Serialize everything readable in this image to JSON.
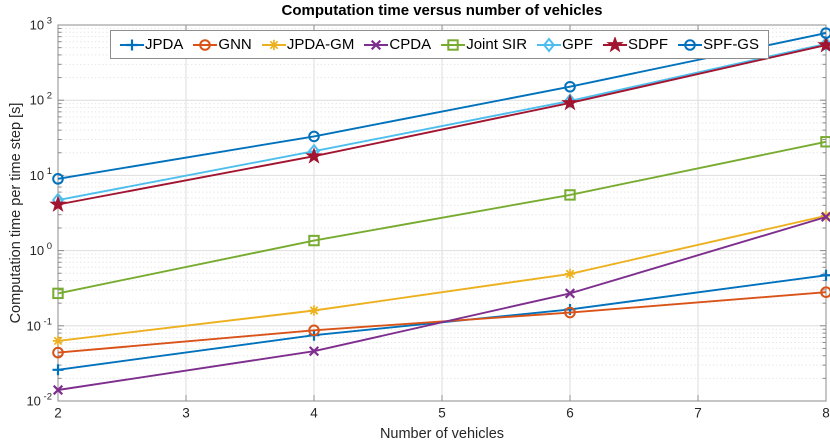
{
  "figure": {
    "window_title": "Computation time versus number of vehicles"
  },
  "chart_data": {
    "type": "line",
    "title": "Computation time versus number of vehicles",
    "xlabel": "Number of vehicles",
    "ylabel": "Computation time per time step [s]",
    "x": [
      2,
      4,
      6,
      8
    ],
    "xlim": [
      2,
      8
    ],
    "x_ticks": [
      2,
      3,
      4,
      5,
      6,
      7,
      8
    ],
    "y_scale": "log",
    "ylim_exponents": [
      -2,
      3
    ],
    "y_tick_exponents": [
      -2,
      -1,
      0,
      1,
      2,
      3
    ],
    "grid": true,
    "minor_grid": true,
    "legend_position": "top-inside-horizontal",
    "series": [
      {
        "name": "JPDA",
        "color": "#0072BD",
        "marker": "plus",
        "values": [
          0.026,
          0.075,
          0.165,
          0.47
        ]
      },
      {
        "name": "GNN",
        "color": "#D95319",
        "marker": "circle",
        "values": [
          0.044,
          0.087,
          0.15,
          0.28
        ]
      },
      {
        "name": "JPDA-GM",
        "color": "#EDB120",
        "marker": "asterisk",
        "values": [
          0.063,
          0.16,
          0.49,
          2.9
        ]
      },
      {
        "name": "CPDA",
        "color": "#7E2F8E",
        "marker": "x",
        "values": [
          0.014,
          0.046,
          0.27,
          2.8
        ]
      },
      {
        "name": "Joint SIR",
        "color": "#77AC30",
        "marker": "square",
        "values": [
          0.27,
          1.36,
          5.5,
          28
        ]
      },
      {
        "name": "GPF",
        "color": "#4DBEEE",
        "marker": "diamond",
        "values": [
          4.7,
          21,
          98,
          560
        ]
      },
      {
        "name": "SDPF",
        "color": "#A2142F",
        "marker": "star",
        "values": [
          4.1,
          18,
          92,
          540
        ]
      },
      {
        "name": "SPF-GS",
        "color": "#0072BD",
        "marker": "circle",
        "values": [
          9.0,
          33,
          151,
          780
        ]
      }
    ],
    "style": {
      "axis_color": "#8c8c8c",
      "tick_label_color": "#262626",
      "grid_major_color": "#dedede",
      "grid_minor_color": "#e4e4e4",
      "legend_border_color": "#8c8c8c"
    }
  }
}
